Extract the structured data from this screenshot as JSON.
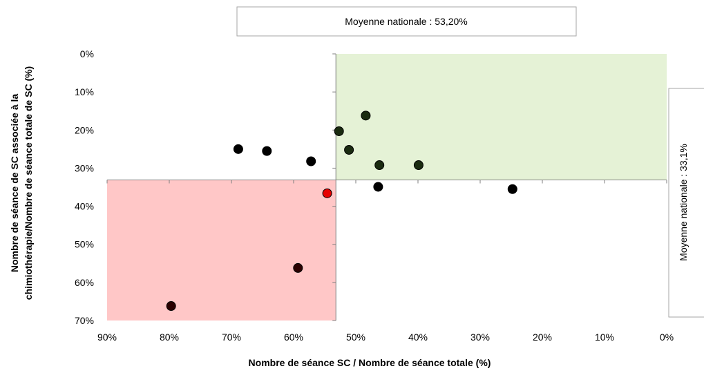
{
  "chart_data": {
    "type": "scatter",
    "title": "",
    "xlabel": "Nombre de séance SC / Nombre de séance totale (%)",
    "ylabel_lines": [
      "Nombre de séance de SC associée à la",
      "chimiothérapie/Nombre de séance totale de SC (%)"
    ],
    "x_reversed": true,
    "y_reversed": true,
    "xlim": [
      0,
      90
    ],
    "ylim": [
      0,
      70
    ],
    "x_ticks": [
      {
        "value": 90,
        "label": "90%"
      },
      {
        "value": 80,
        "label": "80%"
      },
      {
        "value": 70,
        "label": "70%"
      },
      {
        "value": 60,
        "label": "60%"
      },
      {
        "value": 50,
        "label": "50%"
      },
      {
        "value": 40,
        "label": "40%"
      },
      {
        "value": 30,
        "label": "30%"
      },
      {
        "value": 20,
        "label": "20%"
      },
      {
        "value": 10,
        "label": "10%"
      },
      {
        "value": 0,
        "label": "0%"
      }
    ],
    "y_ticks": [
      {
        "value": 0,
        "label": "0%"
      },
      {
        "value": 10,
        "label": "10%"
      },
      {
        "value": 20,
        "label": "20%"
      },
      {
        "value": 30,
        "label": "30%"
      },
      {
        "value": 40,
        "label": "40%"
      },
      {
        "value": 50,
        "label": "50%"
      },
      {
        "value": 60,
        "label": "60%"
      },
      {
        "value": 70,
        "label": "70%"
      }
    ],
    "reference_lines": {
      "x": {
        "value": 53.2,
        "label": "Moyenne nationale : 53,20%"
      },
      "y": {
        "value": 33.1,
        "label": "Moyenne nationale : 33,1%"
      }
    },
    "quadrants": [
      {
        "name": "favorable",
        "x_range": [
          0,
          53.2
        ],
        "y_range": [
          0,
          33.1
        ],
        "color": "#e5f2d6"
      },
      {
        "name": "defavorable",
        "x_range": [
          53.2,
          90
        ],
        "y_range": [
          33.1,
          70
        ],
        "color": "#ffc7c7"
      }
    ],
    "points": [
      {
        "x": 68.9,
        "y": 25.0,
        "color": "#000000"
      },
      {
        "x": 64.3,
        "y": 25.5,
        "color": "#000000"
      },
      {
        "x": 57.2,
        "y": 28.2,
        "color": "#000000"
      },
      {
        "x": 48.4,
        "y": 16.2,
        "color": "#1a2b10"
      },
      {
        "x": 52.7,
        "y": 20.3,
        "color": "#1a2b10"
      },
      {
        "x": 51.1,
        "y": 25.2,
        "color": "#1a2b10"
      },
      {
        "x": 46.2,
        "y": 29.2,
        "color": "#1a2b10"
      },
      {
        "x": 39.9,
        "y": 29.2,
        "color": "#1a2b10"
      },
      {
        "x": 46.4,
        "y": 34.9,
        "color": "#000000"
      },
      {
        "x": 24.8,
        "y": 35.5,
        "color": "#000000"
      },
      {
        "x": 54.6,
        "y": 36.6,
        "color": "#e60000"
      },
      {
        "x": 59.3,
        "y": 56.2,
        "color": "#2a0000"
      },
      {
        "x": 79.7,
        "y": 66.2,
        "color": "#2a0000"
      }
    ]
  }
}
